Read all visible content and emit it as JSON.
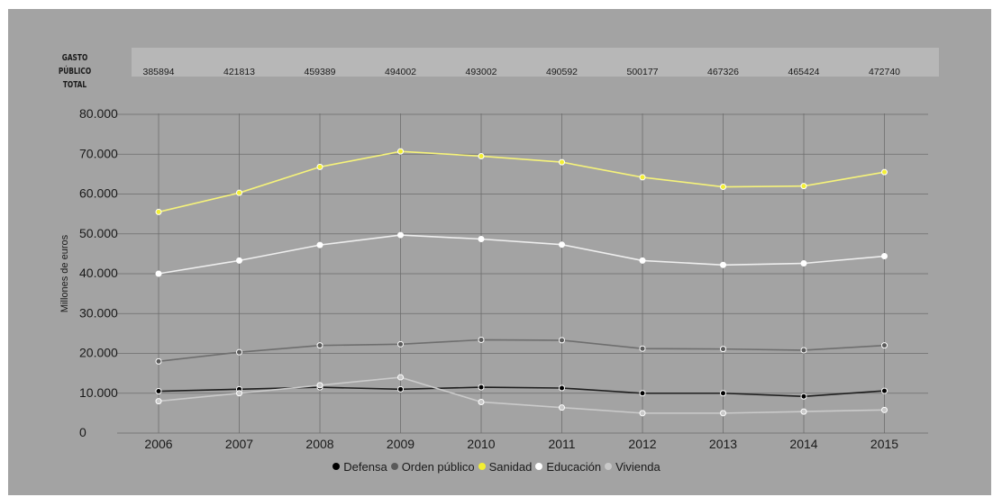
{
  "header": {
    "label_lines": [
      "GASTO PÚBLICO",
      "TOTAL"
    ],
    "totals": [
      "385894",
      "421813",
      "459389",
      "494002",
      "493002",
      "490592",
      "500177",
      "467326",
      "465424",
      "472740"
    ]
  },
  "chart_data": {
    "type": "line",
    "x": [
      "2006",
      "2007",
      "2008",
      "2009",
      "2010",
      "2011",
      "2012",
      "2013",
      "2014",
      "2015"
    ],
    "ylabel": "Millones de euros",
    "ylim": [
      0,
      80000
    ],
    "yticks": [
      "0",
      "10.000",
      "20.000",
      "30.000",
      "40.000",
      "50.000",
      "60.000",
      "70.000",
      "80.000"
    ],
    "grid": true,
    "legend_position": "bottom",
    "series": [
      {
        "name": "Defensa",
        "color": "#1e1e1e",
        "marker": "#000000",
        "values": [
          10500,
          11000,
          11500,
          11000,
          11500,
          11300,
          10000,
          10000,
          9200,
          10600
        ]
      },
      {
        "name": "Orden público",
        "color": "#6e6e6e",
        "marker": "#5a5a5a",
        "values": [
          18000,
          20300,
          22000,
          22300,
          23400,
          23300,
          21200,
          21100,
          20800,
          22000
        ]
      },
      {
        "name": "Sanidad",
        "color": "#f6f37a",
        "marker": "#f3ef33",
        "values": [
          55500,
          60300,
          66800,
          70700,
          69500,
          68000,
          64200,
          61800,
          62000,
          65500
        ]
      },
      {
        "name": "Educación",
        "color": "#eeeeee",
        "marker": "#ffffff",
        "values": [
          40000,
          43300,
          47200,
          49700,
          48700,
          47300,
          43300,
          42200,
          42600,
          44400
        ]
      },
      {
        "name": "Vivienda",
        "color": "#cacaca",
        "marker": "#c8c8c8",
        "values": [
          8000,
          10000,
          12000,
          14000,
          7800,
          6400,
          5000,
          5000,
          5400,
          5800
        ]
      }
    ]
  }
}
